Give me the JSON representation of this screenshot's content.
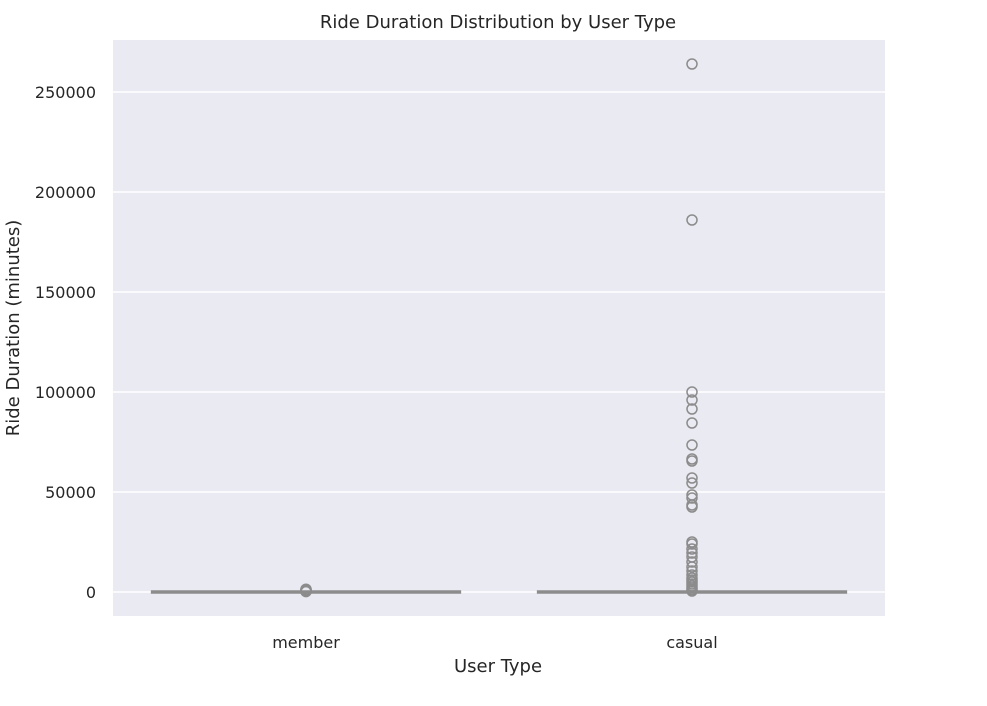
{
  "chart_data": {
    "type": "box",
    "title": "Ride Duration Distribution by User Type",
    "xlabel": "User Type",
    "ylabel": "Ride Duration (minutes)",
    "categories": [
      "member",
      "casual"
    ],
    "ylim": [
      -12000,
      276000
    ],
    "yticks": [
      0,
      50000,
      100000,
      150000,
      200000,
      250000
    ],
    "grid": true,
    "background_color": "#eaeaf2",
    "grid_color": "#ffffff",
    "box_color": "#8c8c8c",
    "boxes": [
      {
        "category": "member",
        "whisker_low": 0,
        "q1": 0,
        "median": 0,
        "q3": 0,
        "whisker_high": 0,
        "outliers": [
          200,
          400,
          600,
          800,
          1000,
          1200,
          1400
        ]
      },
      {
        "category": "casual",
        "whisker_low": 0,
        "q1": 0,
        "median": 0,
        "q3": 0,
        "whisker_high": 0,
        "outliers": [
          264000,
          186000,
          100000,
          96000,
          91500,
          84500,
          73500,
          66500,
          65500,
          57000,
          54500,
          48500,
          47000,
          43500,
          42500,
          25000,
          24000,
          21500,
          19500,
          17500,
          15000,
          12500,
          10500,
          8500,
          7000,
          6000,
          5000,
          4000,
          3000,
          2000,
          1200,
          500
        ]
      }
    ]
  }
}
